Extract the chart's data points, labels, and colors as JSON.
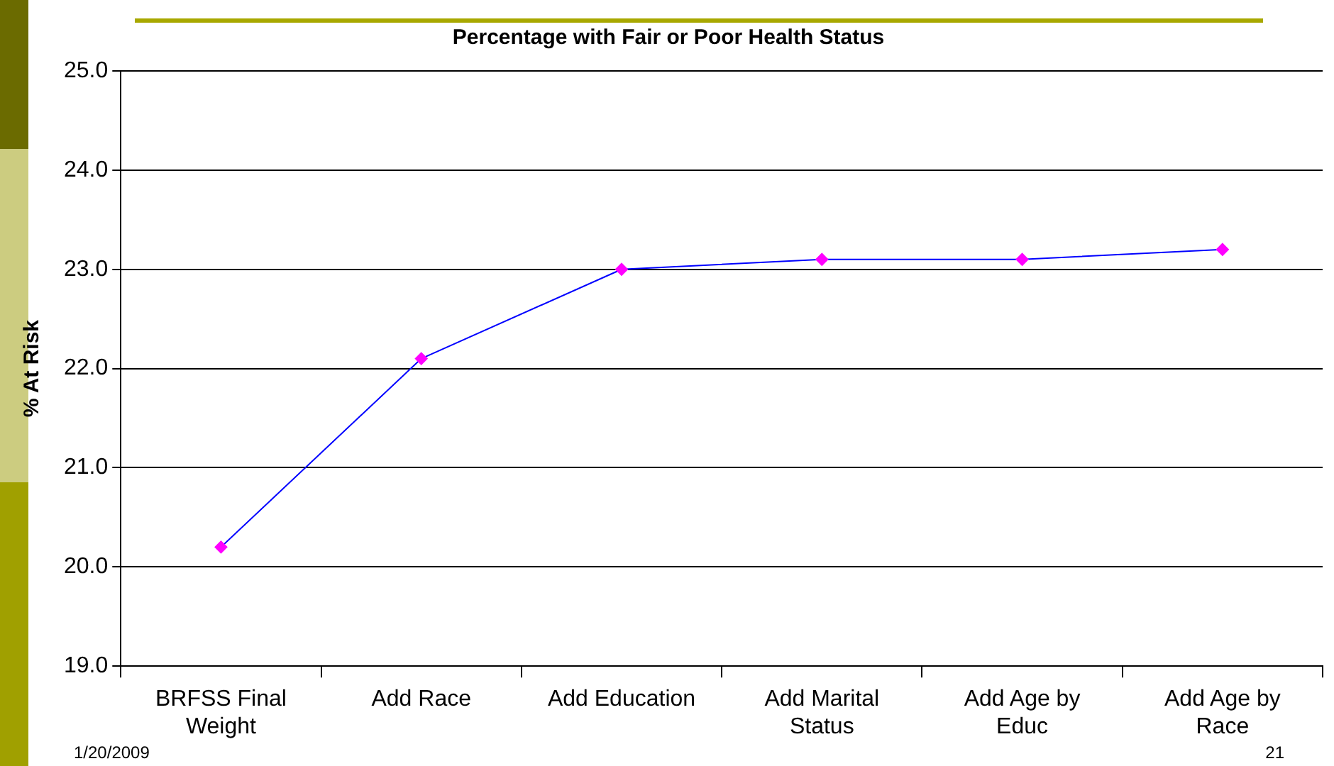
{
  "chart_data": {
    "type": "line",
    "title": "Percentage with Fair or Poor Health Status",
    "ylabel": "% At Risk",
    "categories": [
      "BRFSS Final Weight",
      "Add Race",
      "Add Education",
      "Add Marital Status",
      "Add Age by Educ",
      "Add Age by Race"
    ],
    "series": [
      {
        "color": "#0000ff",
        "colors": [
          "#ff00ff",
          "#ff00ff",
          "#ff00ff",
          "#ff00ff",
          "#ff00ff",
          "#ff00ff"
        ],
        "values": [
          20.2,
          22.1,
          23.0,
          23.1,
          23.1,
          23.2
        ]
      }
    ],
    "ylim": [
      19,
      25
    ],
    "yticks": [
      {
        "value": 19,
        "label": "19.0"
      },
      {
        "value": 20,
        "label": "20.0"
      },
      {
        "value": 21,
        "label": "21.0"
      },
      {
        "value": 22,
        "label": "22.0"
      },
      {
        "value": 23,
        "label": "23.0"
      },
      {
        "value": 24,
        "label": "24.0"
      },
      {
        "value": 25,
        "label": "25.0"
      }
    ],
    "grid": "y",
    "legend": false,
    "marker": "diamond",
    "line_style": "solid",
    "annotations": [
      "1/20/2009",
      "21"
    ]
  }
}
